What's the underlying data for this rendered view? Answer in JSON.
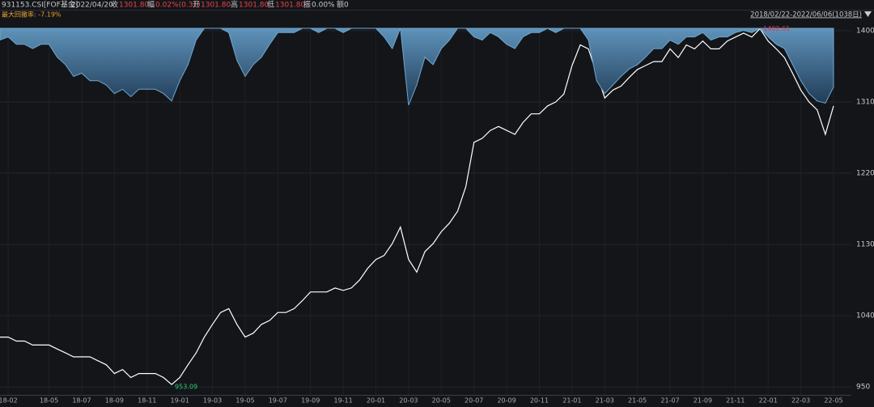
{
  "header": {
    "code": "931153.CSI[FOF基金]",
    "date": "2022/04/20",
    "close_label": "收",
    "close": "1301.80",
    "change_label": "幅",
    "change": "0.02%(0.31)",
    "open_label": "开",
    "open": "1301.80",
    "high_label": "高",
    "high": "1301.80",
    "low_label": "低",
    "low": "1301.80",
    "amplitude_label": "振",
    "amplitude": "0.00%",
    "amount_label": "额",
    "amount": "0",
    "max_drawdown": "最大回撤率: -7.19%",
    "range": "2018/02/22-2022/06/06(1038日)"
  },
  "chart_data": {
    "type": "line",
    "grid": true,
    "categories": [
      null,
      "18-02",
      null,
      null,
      null,
      null,
      "18-05",
      null,
      null,
      null,
      "18-07",
      null,
      null,
      null,
      "18-09",
      null,
      null,
      null,
      "18-11",
      null,
      null,
      null,
      "19-01",
      null,
      null,
      null,
      "19-03",
      null,
      null,
      null,
      "19-05",
      null,
      null,
      null,
      "19-07",
      null,
      null,
      null,
      "19-09",
      null,
      null,
      null,
      "19-11",
      null,
      null,
      null,
      "20-01",
      null,
      null,
      null,
      "20-03",
      null,
      null,
      null,
      "20-05",
      null,
      null,
      null,
      "20-07",
      null,
      null,
      null,
      "20-09",
      null,
      null,
      null,
      "20-11",
      null,
      null,
      null,
      "21-01",
      null,
      null,
      null,
      "21-03",
      null,
      null,
      null,
      "21-05",
      null,
      null,
      null,
      "21-07",
      null,
      null,
      null,
      "21-09",
      null,
      null,
      null,
      "21-11",
      null,
      null,
      null,
      "22-01",
      null,
      null,
      null,
      "22-03",
      null,
      null,
      null,
      "22-05"
    ],
    "series": [
      {
        "color": "#ffffff",
        "values": [
          1013,
          1013,
          1008,
          1008,
          1003,
          1003,
          1003,
          998,
          993,
          988,
          988,
          988,
          983,
          978,
          967,
          972,
          962,
          967,
          967,
          967,
          962,
          953.09,
          962,
          978,
          993,
          1013,
          1029,
          1044,
          1049,
          1029,
          1013,
          1018,
          1029,
          1034,
          1044,
          1044,
          1049,
          1059,
          1070,
          1070,
          1070,
          1075,
          1072,
          1075,
          1085,
          1100,
          1111,
          1116,
          1131,
          1152,
          1111,
          1095,
          1121,
          1131,
          1146,
          1157,
          1172,
          1203,
          1259,
          1264,
          1274,
          1279,
          1274,
          1269,
          1284,
          1295,
          1295,
          1305,
          1310,
          1320,
          1356,
          1382,
          1377,
          1346,
          1315,
          1325,
          1330,
          1341,
          1351,
          1356,
          1361,
          1361,
          1377,
          1366,
          1382,
          1377,
          1387,
          1377,
          1377,
          1387,
          1392,
          1397,
          1392,
          1402.61,
          1387,
          1377,
          1366,
          1346,
          1325,
          1310,
          1300,
          1269,
          1305
        ]
      },
      {
        "color": "#6fa6cf",
        "axis": "y2",
        "values": [
          -1.1,
          -0.8,
          -1.5,
          -1.5,
          -1.9,
          -1.5,
          -1.5,
          -2.7,
          -3.4,
          -4.5,
          -4.2,
          -4.9,
          -4.9,
          -5.3,
          -6.1,
          -5.7,
          -6.4,
          -5.7,
          -5.7,
          -5.7,
          -6.1,
          -6.8,
          -4.9,
          -3.4,
          -1.1,
          0,
          0,
          0,
          -0.4,
          -3.0,
          -4.5,
          -3.4,
          -2.7,
          -1.5,
          -0.4,
          -0.4,
          -0.4,
          0,
          0,
          -0.4,
          0,
          0,
          -0.4,
          0,
          0,
          0,
          0,
          -0.8,
          -1.9,
          0,
          -7.19,
          -5.3,
          -2.7,
          -3.4,
          -1.9,
          -1.1,
          0,
          0,
          -0.8,
          -1.1,
          -0.4,
          -0.8,
          -1.5,
          -1.9,
          -0.8,
          -0.4,
          -0.4,
          0,
          -0.4,
          0,
          0,
          0,
          -1.1,
          -4.9,
          -6.1,
          -5.3,
          -4.5,
          -3.8,
          -3.4,
          -2.7,
          -1.9,
          -1.9,
          -1.1,
          -1.5,
          -0.8,
          -0.8,
          -0.4,
          -1.1,
          -0.8,
          -0.8,
          -0.4,
          -0.2,
          -0.4,
          0,
          -0.8,
          -1.5,
          -1.9,
          -3.4,
          -4.9,
          -6.1,
          -6.8,
          -7.0,
          -5.5
        ]
      }
    ],
    "ylim": [
      940,
      1403
    ],
    "yticks": [
      950,
      1040,
      1130,
      1220,
      1310,
      1400
    ],
    "y2lim": [
      -34.3,
      0
    ],
    "min_color": "#2ecc71",
    "max_color": "#e0364a"
  }
}
